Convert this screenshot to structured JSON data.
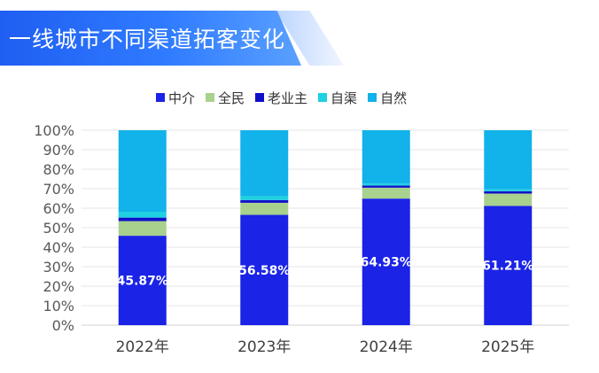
{
  "title": "一线城市不同渠道拓客变化",
  "colors": {
    "中介": "#1a23e6",
    "全民": "#a9d18e",
    "老业主": "#1010c8",
    "自渠": "#1fd0e0",
    "自然": "#12b2ea"
  },
  "chart_data": {
    "type": "bar",
    "stacked": true,
    "categories": [
      "2022年",
      "2023年",
      "2024年",
      "2025年"
    ],
    "ylim": [
      0,
      100
    ],
    "y_ticks": [
      "0%",
      "10%",
      "20%",
      "30%",
      "40%",
      "50%",
      "60%",
      "70%",
      "80%",
      "90%",
      "100%"
    ],
    "legend_position": "top",
    "grid": true,
    "series": [
      {
        "name": "中介",
        "values": [
          45.87,
          56.58,
          64.93,
          61.21
        ],
        "labels": [
          "45.87%",
          "56.58%",
          "64.93%",
          "61.21%"
        ]
      },
      {
        "name": "全民",
        "values": [
          7.5,
          6.2,
          5.6,
          6.3
        ]
      },
      {
        "name": "老业主",
        "values": [
          1.8,
          1.4,
          1.1,
          1.2
        ]
      },
      {
        "name": "自渠",
        "values": [
          3.0,
          2.0,
          1.0,
          1.0
        ]
      },
      {
        "name": "自然",
        "values": [
          41.83,
          33.82,
          27.37,
          30.29
        ]
      }
    ]
  }
}
